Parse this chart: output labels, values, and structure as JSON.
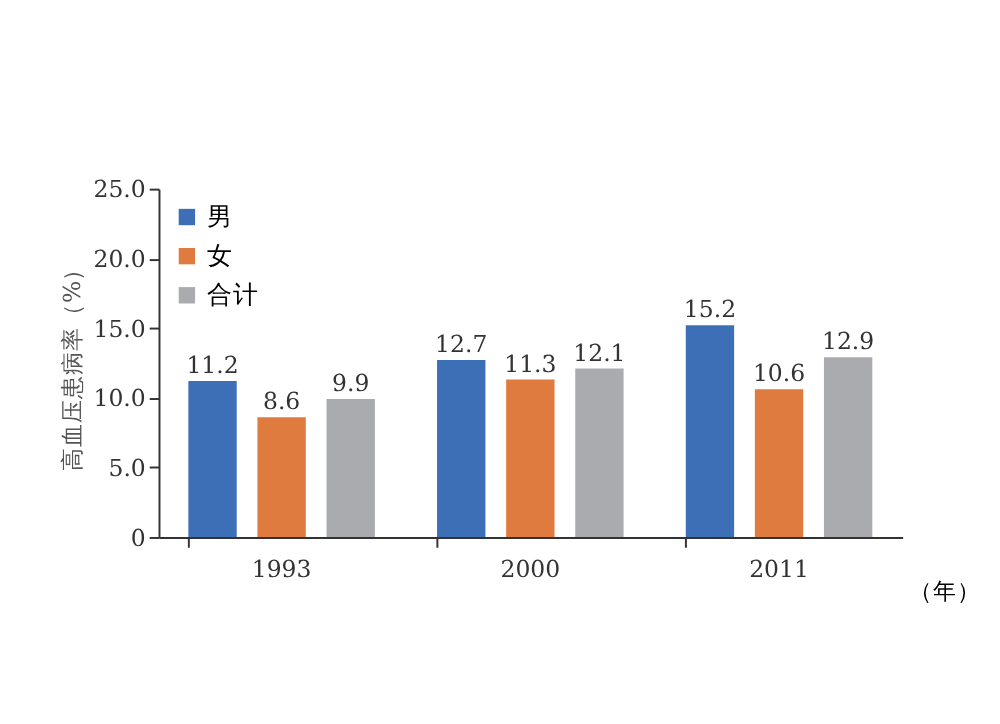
{
  "chart_data": {
    "type": "bar",
    "ylabel": "高血压患病率（%）",
    "xlabel": "（年）",
    "categories": [
      "1993",
      "2000",
      "2011"
    ],
    "series": [
      {
        "name": "男",
        "color": "#3d6fb6",
        "values": [
          11.2,
          12.7,
          15.2
        ]
      },
      {
        "name": "女",
        "color": "#e07b3f",
        "values": [
          8.6,
          11.3,
          10.6
        ]
      },
      {
        "name": "合计",
        "color": "#a9abae",
        "values": [
          9.9,
          12.1,
          12.9
        ]
      }
    ],
    "ylim": [
      0,
      25
    ],
    "yticks": [
      {
        "value": 0,
        "label": "0"
      },
      {
        "value": 5,
        "label": "5.0"
      },
      {
        "value": 10,
        "label": "10.0"
      },
      {
        "value": 15,
        "label": "15.0"
      },
      {
        "value": 20,
        "label": "20.0"
      },
      {
        "value": 25,
        "label": "25.0"
      }
    ],
    "data_labels": true,
    "legend": "top left",
    "grid": false
  }
}
